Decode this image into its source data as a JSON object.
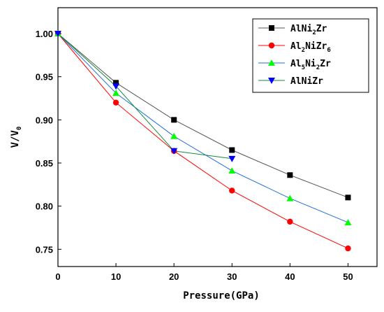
{
  "chart_data": {
    "type": "line",
    "xlabel": "Pressure(GPa)",
    "ylabel": {
      "main": "V/V",
      "sub": "0"
    },
    "xlim": [
      0,
      55
    ],
    "ylim": [
      0.73,
      1.03
    ],
    "xticks": [
      0,
      10,
      20,
      30,
      40,
      50
    ],
    "xtick_labels": [
      "0",
      "10",
      "20",
      "30",
      "40",
      "50"
    ],
    "yticks": [
      0.75,
      0.8,
      0.85,
      0.9,
      0.95,
      1.0
    ],
    "ytick_labels": [
      "0.75",
      "0.80",
      "0.85",
      "0.90",
      "0.95",
      "1.00"
    ],
    "grid": false,
    "legend_position": "top-right",
    "series": [
      {
        "name": "AlNi2Zr",
        "label_parts": [
          {
            "t": "AlNi",
            "sub": false
          },
          {
            "t": "2",
            "sub": true
          },
          {
            "t": "Zr",
            "sub": false
          }
        ],
        "color": "#000000",
        "line_color": "#555555",
        "marker": "square",
        "x": [
          0,
          10,
          20,
          30,
          40,
          50
        ],
        "y": [
          1.0,
          0.943,
          0.9,
          0.865,
          0.836,
          0.81
        ]
      },
      {
        "name": "Al2NiZr6",
        "label_parts": [
          {
            "t": "Al",
            "sub": false
          },
          {
            "t": "2",
            "sub": true
          },
          {
            "t": "NiZr",
            "sub": false
          },
          {
            "t": "6",
            "sub": true
          }
        ],
        "color": "#ff0000",
        "line_color": "#ff0000",
        "marker": "diamond",
        "x": [
          0,
          10,
          20,
          30,
          40,
          50
        ],
        "y": [
          1.0,
          0.92,
          0.864,
          0.818,
          0.782,
          0.751
        ]
      },
      {
        "name": "Al5Ni2Zr",
        "label_parts": [
          {
            "t": "Al",
            "sub": false
          },
          {
            "t": "5",
            "sub": true
          },
          {
            "t": "Ni",
            "sub": false
          },
          {
            "t": "2",
            "sub": true
          },
          {
            "t": "Zr",
            "sub": false
          }
        ],
        "color": "#00ff00",
        "line_color": "#1e6fd9",
        "marker": "triangle-up",
        "x": [
          0,
          10,
          20,
          30,
          40,
          50
        ],
        "y": [
          1.0,
          0.931,
          0.881,
          0.841,
          0.809,
          0.781
        ]
      },
      {
        "name": "AlNiZr",
        "label_parts": [
          {
            "t": "AlNiZr",
            "sub": false
          }
        ],
        "color": "#0000ff",
        "line_color": "#128a3a",
        "marker": "triangle-down",
        "x": [
          0,
          10,
          20,
          30
        ],
        "y": [
          1.0,
          0.939,
          0.864,
          0.855
        ]
      }
    ]
  }
}
